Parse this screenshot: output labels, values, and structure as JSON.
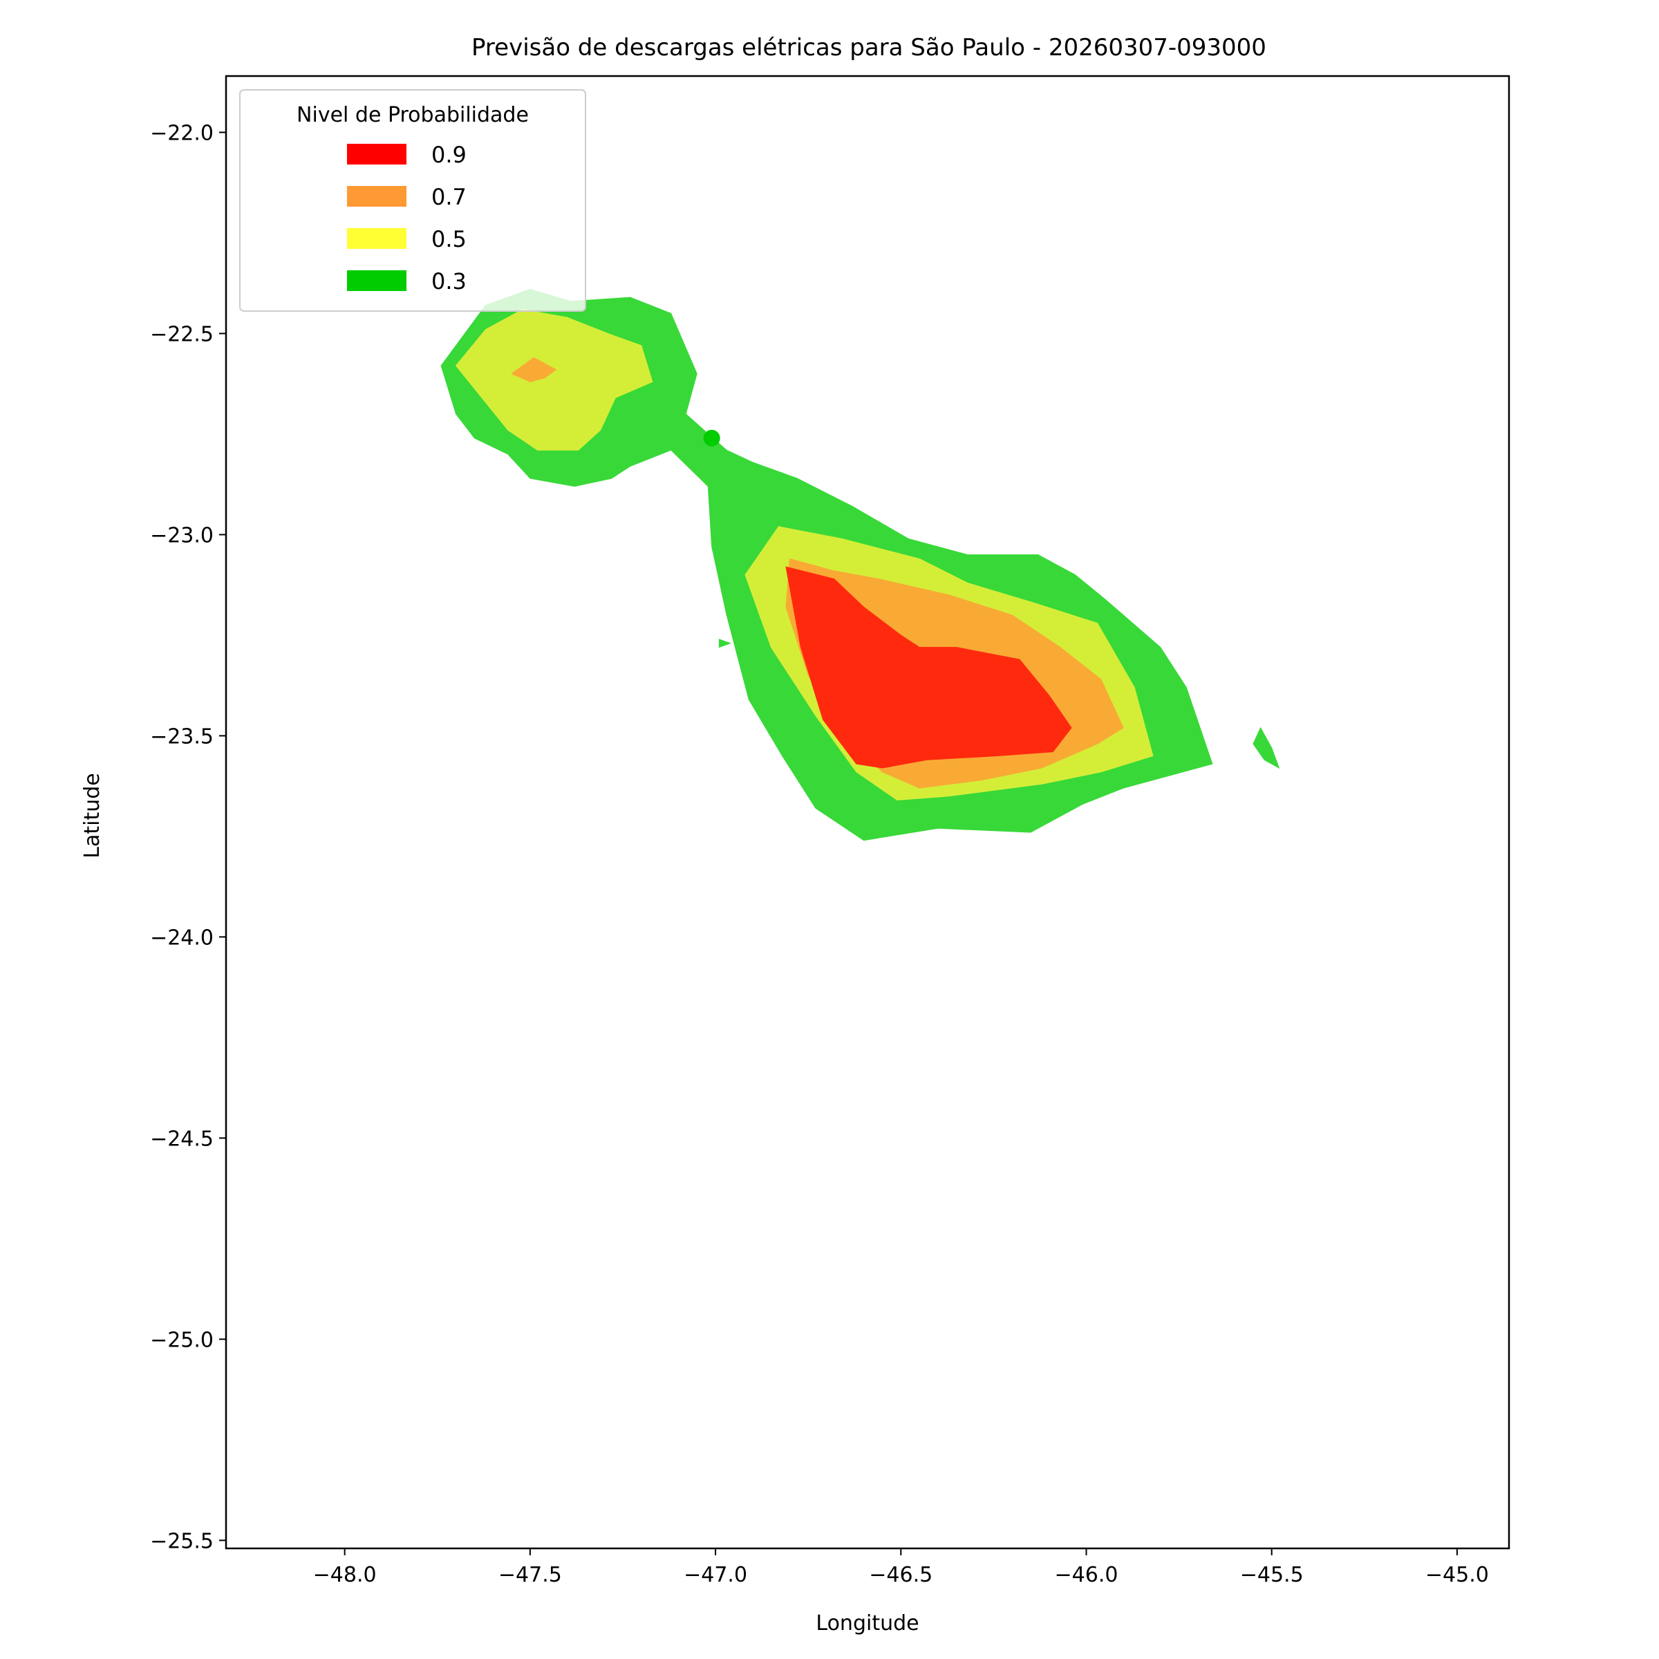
{
  "chart_data": {
    "type": "contour",
    "title": "Previsão de descargas elétricas para São Paulo - 20260307-093000",
    "xlabel": "Longitude",
    "ylabel": "Latitude",
    "xlim": [
      -48.32,
      -44.86
    ],
    "ylim": [
      -25.52,
      -21.86
    ],
    "xticks": [
      -48.0,
      -47.5,
      -47.0,
      -46.5,
      -46.0,
      -45.5,
      -45.0
    ],
    "yticks": [
      -22.0,
      -22.5,
      -23.0,
      -23.5,
      -24.0,
      -24.5,
      -25.0,
      -25.5
    ],
    "xtick_labels": [
      "−48.0",
      "−47.5",
      "−47.0",
      "−46.5",
      "−46.0",
      "−45.5",
      "−45.0"
    ],
    "ytick_labels": [
      "−22.0",
      "−22.5",
      "−23.0",
      "−23.5",
      "−24.0",
      "−24.5",
      "−25.0",
      "−25.5"
    ],
    "grid": false,
    "legend": {
      "title": "Nivel de Probabilidade",
      "placement": "top-left",
      "entries": [
        {
          "label": "0.9",
          "color": "#ff0000"
        },
        {
          "label": "0.7",
          "color": "#ff9933"
        },
        {
          "label": "0.5",
          "color": "#ffff33"
        },
        {
          "label": "0.3",
          "color": "#00cc00"
        }
      ]
    },
    "regions": [
      {
        "level": "0.3",
        "color": "#38d838",
        "polygon": [
          [
            -47.74,
            -22.58
          ],
          [
            -47.62,
            -22.43
          ],
          [
            -47.5,
            -22.39
          ],
          [
            -47.39,
            -22.42
          ],
          [
            -47.23,
            -22.41
          ],
          [
            -47.12,
            -22.45
          ],
          [
            -47.05,
            -22.6
          ],
          [
            -47.08,
            -22.7
          ],
          [
            -46.97,
            -22.79
          ],
          [
            -46.9,
            -22.82
          ],
          [
            -46.78,
            -22.86
          ],
          [
            -46.63,
            -22.93
          ],
          [
            -46.48,
            -23.01
          ],
          [
            -46.32,
            -23.05
          ],
          [
            -46.13,
            -23.05
          ],
          [
            -46.03,
            -23.1
          ],
          [
            -45.95,
            -23.16
          ],
          [
            -45.8,
            -23.28
          ],
          [
            -45.73,
            -23.38
          ],
          [
            -45.66,
            -23.57
          ],
          [
            -45.9,
            -23.63
          ],
          [
            -46.01,
            -23.67
          ],
          [
            -46.15,
            -23.74
          ],
          [
            -46.4,
            -23.73
          ],
          [
            -46.6,
            -23.76
          ],
          [
            -46.73,
            -23.68
          ],
          [
            -46.82,
            -23.55
          ],
          [
            -46.91,
            -23.41
          ],
          [
            -46.97,
            -23.2
          ],
          [
            -47.01,
            -23.03
          ],
          [
            -47.02,
            -22.88
          ],
          [
            -47.12,
            -22.79
          ],
          [
            -47.23,
            -22.83
          ],
          [
            -47.28,
            -22.86
          ],
          [
            -47.38,
            -22.88
          ],
          [
            -47.5,
            -22.86
          ],
          [
            -47.56,
            -22.8
          ],
          [
            -47.65,
            -22.76
          ],
          [
            -47.7,
            -22.7
          ]
        ]
      },
      {
        "level": "0.3",
        "color": "#38d838",
        "polygon": [
          [
            -45.53,
            -23.48
          ],
          [
            -45.5,
            -23.53
          ],
          [
            -45.48,
            -23.58
          ],
          [
            -45.52,
            -23.56
          ],
          [
            -45.55,
            -23.52
          ]
        ]
      },
      {
        "level": "0.3",
        "color": "#38d838",
        "polygon": [
          [
            -46.99,
            -23.26
          ],
          [
            -46.96,
            -23.27
          ],
          [
            -46.99,
            -23.28
          ]
        ]
      },
      {
        "level": "0.5",
        "color": "#d4ee38",
        "polygon": [
          [
            -47.7,
            -22.58
          ],
          [
            -47.62,
            -22.49
          ],
          [
            -47.52,
            -22.44
          ],
          [
            -47.4,
            -22.46
          ],
          [
            -47.29,
            -22.5
          ],
          [
            -47.2,
            -22.53
          ],
          [
            -47.17,
            -22.62
          ],
          [
            -47.27,
            -22.66
          ],
          [
            -47.31,
            -22.74
          ],
          [
            -47.37,
            -22.79
          ],
          [
            -47.48,
            -22.79
          ],
          [
            -47.56,
            -22.74
          ],
          [
            -47.63,
            -22.66
          ]
        ]
      },
      {
        "level": "0.5",
        "color": "#d4ee38",
        "polygon": [
          [
            -46.83,
            -22.98
          ],
          [
            -46.66,
            -23.01
          ],
          [
            -46.45,
            -23.06
          ],
          [
            -46.32,
            -23.12
          ],
          [
            -46.14,
            -23.17
          ],
          [
            -45.97,
            -23.22
          ],
          [
            -45.87,
            -23.38
          ],
          [
            -45.82,
            -23.55
          ],
          [
            -45.96,
            -23.59
          ],
          [
            -46.12,
            -23.62
          ],
          [
            -46.37,
            -23.65
          ],
          [
            -46.51,
            -23.66
          ],
          [
            -46.62,
            -23.59
          ],
          [
            -46.73,
            -23.45
          ],
          [
            -46.85,
            -23.28
          ],
          [
            -46.92,
            -23.1
          ]
        ]
      },
      {
        "level": "0.7",
        "color": "#f8aa35",
        "polygon": [
          [
            -47.55,
            -22.6
          ],
          [
            -47.49,
            -22.56
          ],
          [
            -47.43,
            -22.59
          ],
          [
            -47.46,
            -22.61
          ],
          [
            -47.5,
            -22.62
          ]
        ]
      },
      {
        "level": "0.7",
        "color": "#f8aa35",
        "polygon": [
          [
            -46.8,
            -23.06
          ],
          [
            -46.68,
            -23.09
          ],
          [
            -46.56,
            -23.11
          ],
          [
            -46.37,
            -23.15
          ],
          [
            -46.2,
            -23.2
          ],
          [
            -46.07,
            -23.28
          ],
          [
            -45.96,
            -23.36
          ],
          [
            -45.9,
            -23.48
          ],
          [
            -45.97,
            -23.52
          ],
          [
            -46.12,
            -23.58
          ],
          [
            -46.28,
            -23.61
          ],
          [
            -46.45,
            -23.63
          ],
          [
            -46.55,
            -23.59
          ],
          [
            -46.65,
            -23.5
          ],
          [
            -46.75,
            -23.35
          ],
          [
            -46.81,
            -23.18
          ]
        ]
      },
      {
        "level": "0.9",
        "color": "#ff2a0e",
        "polygon": [
          [
            -46.81,
            -23.08
          ],
          [
            -46.68,
            -23.11
          ],
          [
            -46.6,
            -23.18
          ],
          [
            -46.5,
            -23.25
          ],
          [
            -46.45,
            -23.28
          ],
          [
            -46.35,
            -23.28
          ],
          [
            -46.18,
            -23.31
          ],
          [
            -46.1,
            -23.4
          ],
          [
            -46.04,
            -23.48
          ],
          [
            -46.09,
            -23.54
          ],
          [
            -46.24,
            -23.55
          ],
          [
            -46.43,
            -23.56
          ],
          [
            -46.55,
            -23.58
          ],
          [
            -46.62,
            -23.57
          ],
          [
            -46.71,
            -23.46
          ],
          [
            -46.77,
            -23.28
          ]
        ]
      }
    ],
    "points": [
      {
        "lon": -47.01,
        "lat": -22.76,
        "color": "#00cc00"
      }
    ]
  }
}
